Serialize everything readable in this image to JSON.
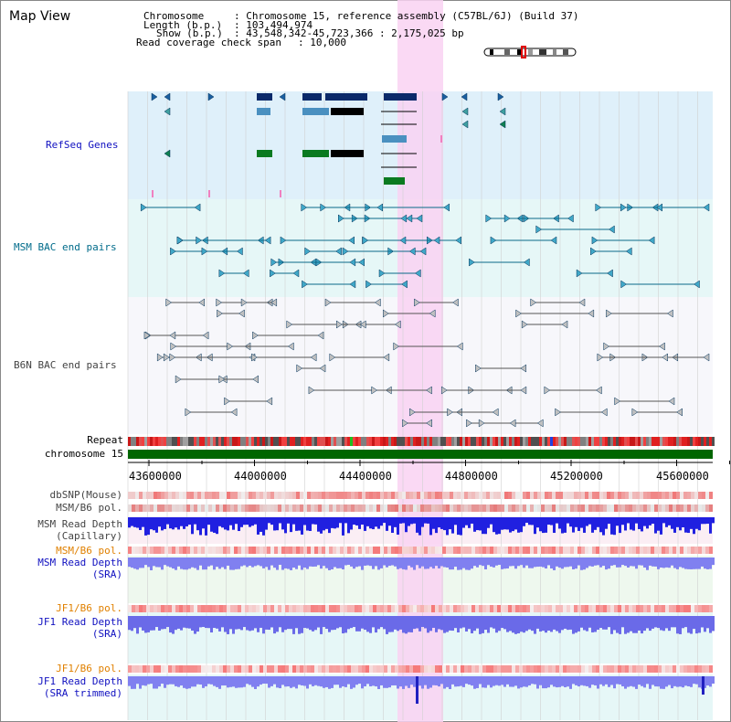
{
  "header": {
    "title": "Map View",
    "chromosome_key": "Chromosome",
    "chromosome_val": ": Chromosome 15, reference assembly (C57BL/6J) (Build 37)",
    "length_key": "Length (b.p.)",
    "length_val": ": 103,494,974",
    "show_key": "Show (b.p.)",
    "show_val": ": 43,548,342-45,723,366 : 2,175,025 bp",
    "coverage_key": "Read coverage check span",
    "coverage_val": ": 10,000"
  },
  "tracks": {
    "refseq": "RefSeq Genes",
    "msm_bac": "MSM BAC end pairs",
    "b6n_bac": "B6N BAC end pairs",
    "repeat": "Repeat",
    "chromosome": "chromosome 15",
    "dbsnp": "dbSNP(Mouse)",
    "msm_b6_pol_1": "MSM/B6 pol.",
    "msm_read_depth_cap_1": "MSM Read Depth",
    "msm_read_depth_cap_2": "(Capillary)",
    "msm_b6_pol_2": "MSM/B6 pol.",
    "msm_read_depth_sra_1": "MSM Read Depth",
    "msm_read_depth_sra_2": "(SRA)",
    "jf1_b6_pol_1": "JF1/B6 pol.",
    "jf1_read_depth_sra_1": "JF1 Read Depth",
    "jf1_read_depth_sra_2": "(SRA)",
    "jf1_b6_pol_2": "JF1/B6 pol.",
    "jf1_read_depth_trim_1": "JF1 Read Depth",
    "jf1_read_depth_trim_2": "(SRA trimmed)"
  },
  "axis": {
    "ticks": [
      "43600000",
      "44000000",
      "44400000",
      "44800000",
      "45200000",
      "45600000"
    ]
  },
  "colors": {
    "refseq_bg": "#dff0fa",
    "msm_bg": "#e6f7f7",
    "highlight": "#f9d2f2",
    "chromosome_bar": "#006600",
    "depth_blue": "#2020e0",
    "depth_light": "#8080f0"
  }
}
